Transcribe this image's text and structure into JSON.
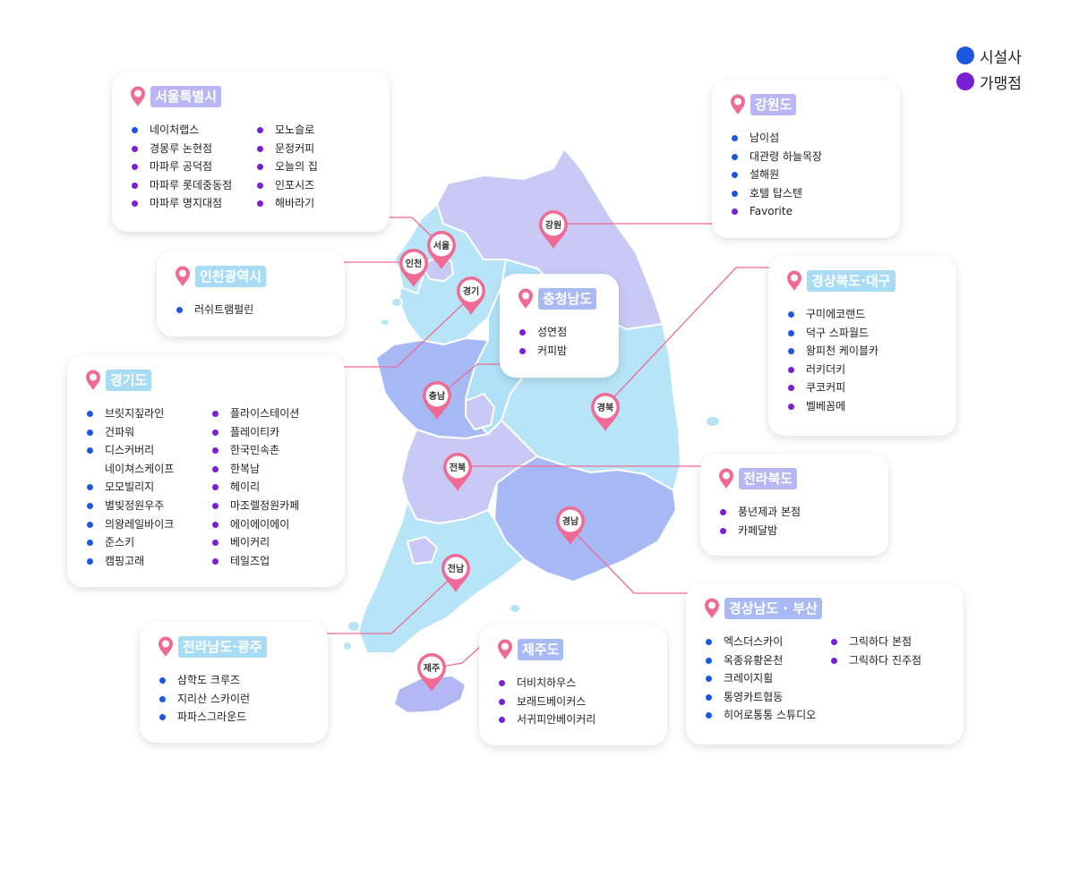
{
  "legend": [
    {
      "label": "시설사",
      "color": "#1b57e0"
    },
    {
      "label": "가맹점",
      "color": "#7a1fd6"
    }
  ],
  "pin_color": "#f06a96",
  "map_labels": {
    "seoul": "서울",
    "incheon": "인천",
    "gyeonggi": "경기",
    "gangwon": "강원",
    "chungnam": "충남",
    "gyeongbuk": "경북",
    "jeonbuk": "전북",
    "gyeongnam": "경남",
    "jeonnam": "전남",
    "jeju": "제주"
  },
  "regions": {
    "seoul": {
      "title": "서울특별시",
      "columns": [
        [
          {
            "name": "네이처랩스",
            "type": "facility"
          },
          {
            "name": "경몽루 논현점",
            "type": "franchise"
          },
          {
            "name": "마파루 공덕점",
            "type": "franchise"
          },
          {
            "name": "마파루 롯데중동점",
            "type": "franchise"
          },
          {
            "name": "마파루 명지대점",
            "type": "franchise"
          }
        ],
        [
          {
            "name": "모노슬로",
            "type": "franchise"
          },
          {
            "name": "문정커피",
            "type": "franchise"
          },
          {
            "name": "오늘의 집",
            "type": "franchise"
          },
          {
            "name": "인포시즈",
            "type": "franchise"
          },
          {
            "name": "해바라기",
            "type": "franchise"
          }
        ]
      ]
    },
    "incheon": {
      "title": "인천광역시",
      "columns": [
        [
          {
            "name": "러쉬트램펄린",
            "type": "facility"
          }
        ]
      ]
    },
    "gyeonggi": {
      "title": "경기도",
      "columns": [
        [
          {
            "name": "브릿지짚라인",
            "type": "facility"
          },
          {
            "name": "건파워",
            "type": "facility"
          },
          {
            "name": "디스커버리",
            "type": "facility"
          },
          {
            "name": "네이쳐스케이프",
            "type": "none"
          },
          {
            "name": "모모빌리지",
            "type": "facility"
          },
          {
            "name": "별빛정원우주",
            "type": "facility"
          },
          {
            "name": "의왕레일바이크",
            "type": "facility"
          },
          {
            "name": "준스키",
            "type": "facility"
          },
          {
            "name": "캠핑고래",
            "type": "facility"
          }
        ],
        [
          {
            "name": "플라이스테이션",
            "type": "franchise"
          },
          {
            "name": "플레이티카",
            "type": "franchise"
          },
          {
            "name": "한국민속촌",
            "type": "franchise"
          },
          {
            "name": "한복남",
            "type": "franchise"
          },
          {
            "name": "헤이리",
            "type": "franchise"
          },
          {
            "name": "마조렐정원카페",
            "type": "franchise"
          },
          {
            "name": "에이에이에이",
            "type": "franchise"
          },
          {
            "name": "베이커리",
            "type": "franchise"
          },
          {
            "name": "테일즈업",
            "type": "franchise"
          }
        ]
      ]
    },
    "gangwon": {
      "title": "강원도",
      "columns": [
        [
          {
            "name": "남이섬",
            "type": "facility"
          },
          {
            "name": "대관령 하늘목장",
            "type": "facility"
          },
          {
            "name": "설해원",
            "type": "facility"
          },
          {
            "name": "호텔 탑스텐",
            "type": "facility"
          },
          {
            "name": "Favorite",
            "type": "franchise"
          }
        ]
      ]
    },
    "chungnam": {
      "title": "충청남도",
      "columns": [
        [
          {
            "name": "성연점",
            "type": "franchise"
          },
          {
            "name": "커피밤",
            "type": "franchise"
          }
        ]
      ]
    },
    "gyeongbuk": {
      "title": "경상북도·대구",
      "columns": [
        [
          {
            "name": "구미에코랜드",
            "type": "facility"
          },
          {
            "name": "덕구 스파월드",
            "type": "facility"
          },
          {
            "name": "왕피천 케이블카",
            "type": "facility"
          },
          {
            "name": "러키더키",
            "type": "franchise"
          },
          {
            "name": "쿠코커피",
            "type": "franchise"
          },
          {
            "name": "벨베꼼메",
            "type": "franchise"
          }
        ]
      ]
    },
    "jeonbuk": {
      "title": "전라북도",
      "columns": [
        [
          {
            "name": "풍년제과 본점",
            "type": "franchise"
          },
          {
            "name": "카페달밤",
            "type": "franchise"
          }
        ]
      ]
    },
    "gyeongnam": {
      "title": "경상남도 · 부산",
      "columns": [
        [
          {
            "name": "엑스더스카이",
            "type": "facility"
          },
          {
            "name": "옥종유황온천",
            "type": "facility"
          },
          {
            "name": "크레이지휠",
            "type": "facility"
          },
          {
            "name": "통영카트협동",
            "type": "facility"
          },
          {
            "name": "히어로통통 스튜디오",
            "type": "facility"
          }
        ],
        [
          {
            "name": "그릭하다 본점",
            "type": "franchise"
          },
          {
            "name": "그릭하다 진주점",
            "type": "franchise"
          }
        ]
      ]
    },
    "jeonnam": {
      "title": "전라남도·광주",
      "columns": [
        [
          {
            "name": "삼학도 크루즈",
            "type": "facility"
          },
          {
            "name": "지리산 스카이런",
            "type": "facility"
          },
          {
            "name": "파파스그라운드",
            "type": "facility"
          }
        ]
      ]
    },
    "jeju": {
      "title": "제주도",
      "columns": [
        [
          {
            "name": "더비치하우스",
            "type": "franchise"
          },
          {
            "name": "보래드베이커스",
            "type": "franchise"
          },
          {
            "name": "서귀피안베이커리",
            "type": "franchise"
          }
        ]
      ]
    }
  }
}
